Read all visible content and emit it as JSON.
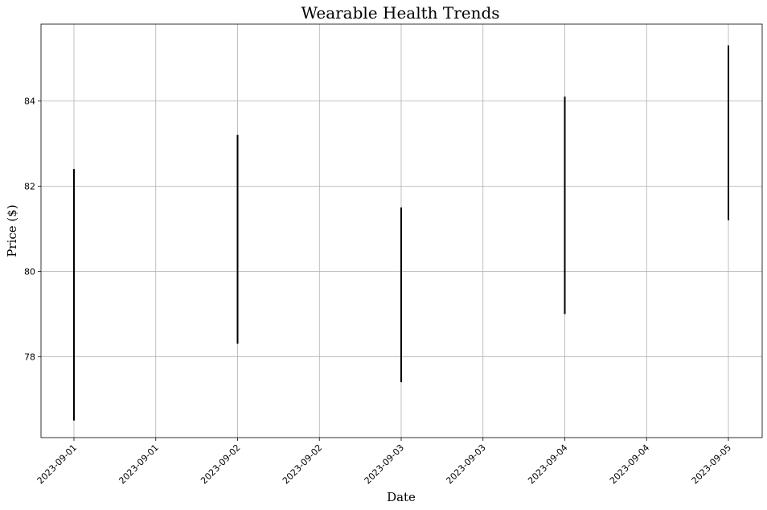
{
  "chart_data": {
    "type": "bar",
    "title": "Wearable Health Trends",
    "xlabel": "Date",
    "ylabel": "Price ($)",
    "grid": true,
    "x_tick_labels": [
      "2023-09-01",
      "2023-09-01",
      "2023-09-02",
      "2023-09-02",
      "2023-09-03",
      "2023-09-03",
      "2023-09-04",
      "2023-09-04",
      "2023-09-05"
    ],
    "y_ticks": [
      78,
      80,
      82,
      84
    ],
    "ylim": [
      76.1,
      85.8
    ],
    "categories": [
      "2023-09-01",
      "2023-09-02",
      "2023-09-03",
      "2023-09-04",
      "2023-09-05"
    ],
    "series": [
      {
        "values": [
          {
            "date": "2023-09-01",
            "low": 76.5,
            "high": 82.4
          },
          {
            "date": "2023-09-02",
            "low": 78.3,
            "high": 83.2
          },
          {
            "date": "2023-09-03",
            "low": 77.4,
            "high": 81.5
          },
          {
            "date": "2023-09-04",
            "low": 79.0,
            "high": 84.1
          },
          {
            "date": "2023-09-05",
            "low": 81.2,
            "high": 85.3
          }
        ]
      }
    ],
    "bar_color": "#000000",
    "grid_color": "#b0b0b0"
  }
}
